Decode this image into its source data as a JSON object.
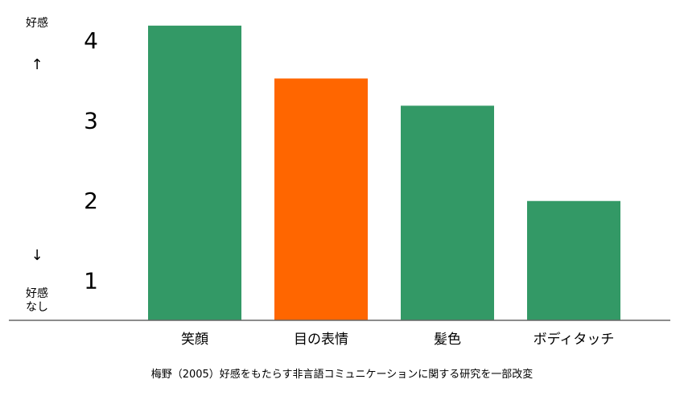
{
  "chart_data": {
    "type": "bar",
    "categories": [
      "笑顔",
      "目の表情",
      "髪色",
      "ボディタッチ"
    ],
    "values": [
      4.18,
      3.52,
      3.18,
      1.99
    ],
    "bar_colors": [
      "#339966",
      "#ff6600",
      "#339966",
      "#339966"
    ],
    "ylim": [
      0.5,
      4.5
    ],
    "yticks": [
      1,
      2,
      3,
      4
    ],
    "title": "",
    "xlabel": "",
    "ylabel_top": "好感",
    "ylabel_up_arrow": "↑",
    "ylabel_down_arrow": "↓",
    "ylabel_bottom_line1": "好感",
    "ylabel_bottom_line2": "なし",
    "grid": false,
    "caption": "梅野（2005）好感をもたらす非言語コミュニケーションに関する研究を一部改変"
  }
}
